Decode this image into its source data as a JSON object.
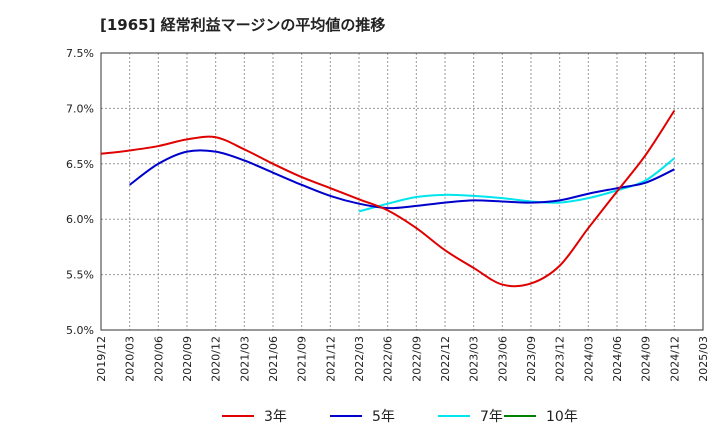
{
  "chart_data": {
    "type": "line",
    "title": "[1965]  経常利益マージンの平均値の推移",
    "xlabel": "",
    "ylabel": "",
    "ylim": [
      5.0,
      7.5
    ],
    "yticks": [
      "5.0%",
      "5.5%",
      "6.0%",
      "6.5%",
      "7.0%",
      "7.5%"
    ],
    "ytick_values": [
      5.0,
      5.5,
      6.0,
      6.5,
      7.0,
      7.5
    ],
    "x_categories": [
      "2019/12",
      "2020/03",
      "2020/06",
      "2020/09",
      "2020/12",
      "2021/03",
      "2021/06",
      "2021/09",
      "2021/12",
      "2022/03",
      "2022/06",
      "2022/09",
      "2022/12",
      "2023/03",
      "2023/06",
      "2023/09",
      "2023/12",
      "2024/03",
      "2024/06",
      "2024/09",
      "2024/12",
      "2025/03"
    ],
    "grid": true,
    "legend_position": "bottom",
    "series": [
      {
        "name": "3年",
        "color": "#e00000",
        "values": [
          6.59,
          6.62,
          6.66,
          6.72,
          6.74,
          6.63,
          6.5,
          6.38,
          6.28,
          6.18,
          6.08,
          5.92,
          5.72,
          5.56,
          5.41,
          5.42,
          5.58,
          5.92,
          6.25,
          6.58,
          6.98,
          null
        ]
      },
      {
        "name": "5年",
        "color": "#0000cc",
        "values": [
          null,
          6.31,
          6.5,
          6.61,
          6.61,
          6.53,
          6.42,
          6.31,
          6.21,
          6.14,
          6.1,
          6.12,
          6.15,
          6.17,
          6.16,
          6.15,
          6.17,
          6.23,
          6.28,
          6.33,
          6.45,
          null
        ]
      },
      {
        "name": "7年",
        "color": "#00e5ee",
        "values": [
          null,
          null,
          null,
          null,
          null,
          null,
          null,
          null,
          null,
          6.07,
          6.14,
          6.2,
          6.22,
          6.21,
          6.19,
          6.16,
          6.15,
          6.19,
          6.26,
          6.35,
          6.55,
          null
        ]
      },
      {
        "name": "10年",
        "color": "#008000",
        "values": []
      }
    ]
  }
}
